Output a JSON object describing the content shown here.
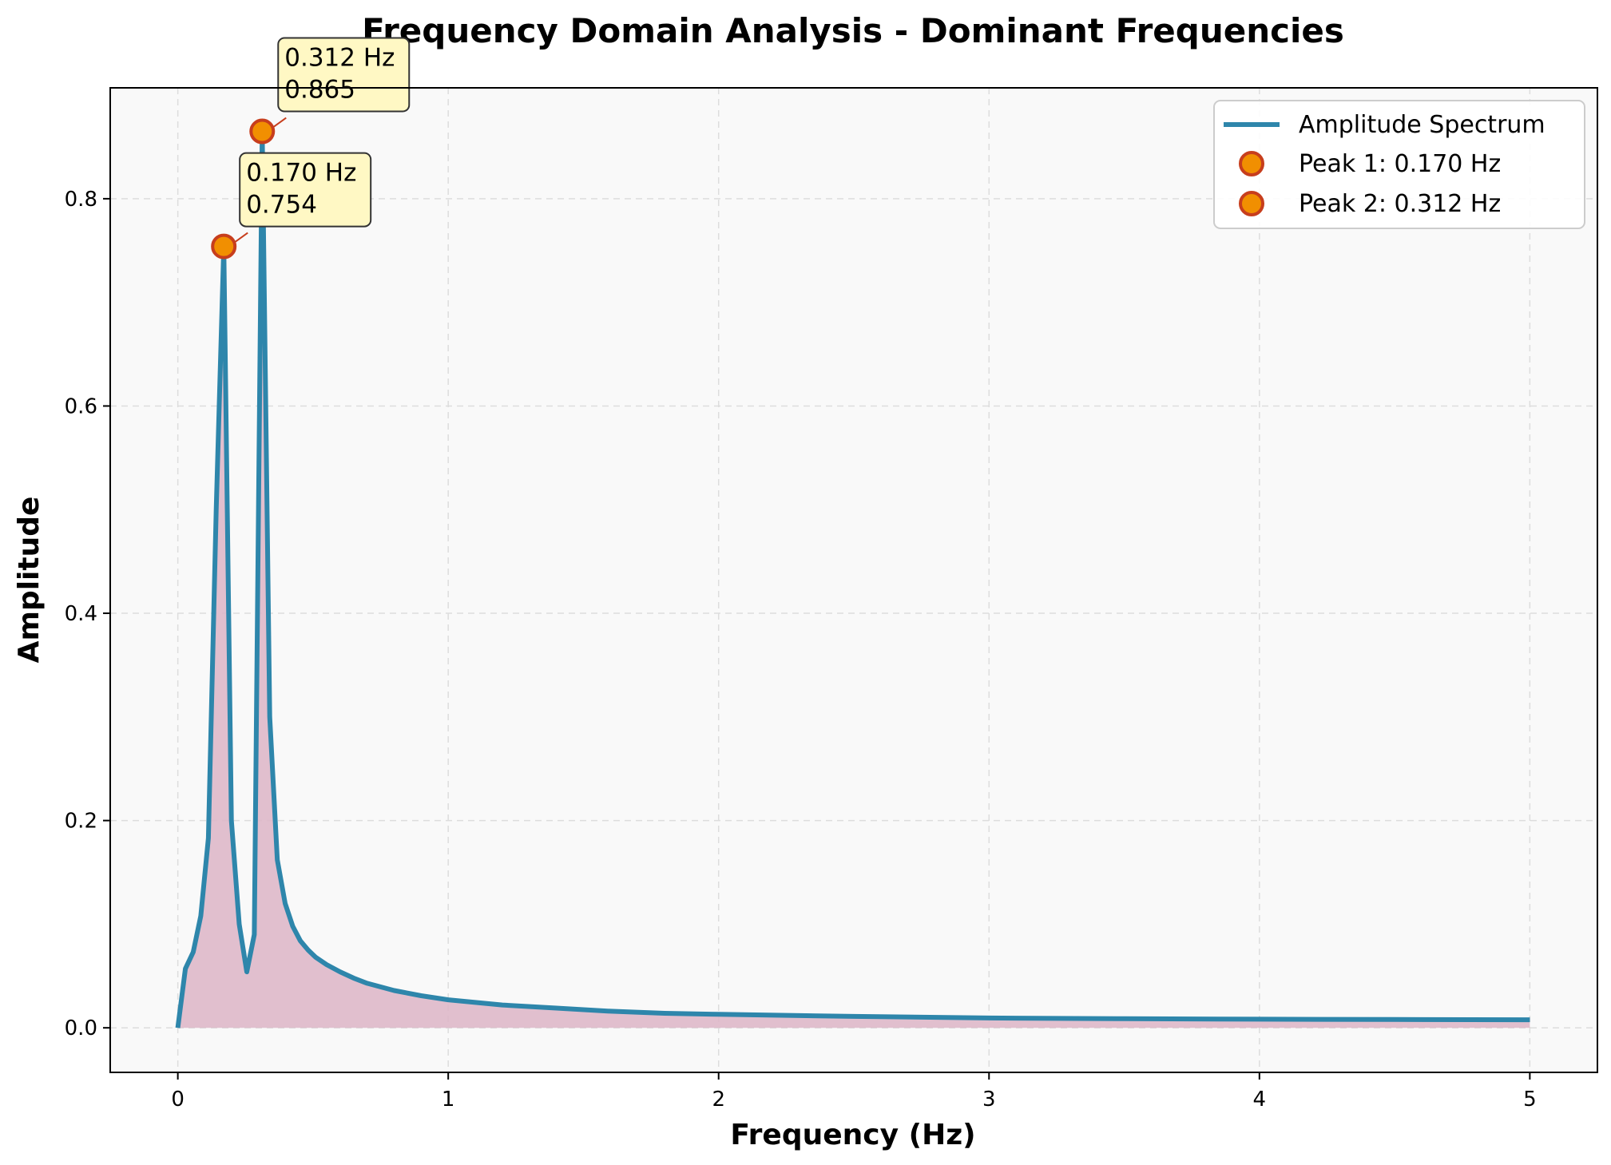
{
  "chart_data": {
    "type": "line",
    "title": "Frequency Domain Analysis - Dominant Frequencies",
    "xlabel": "Frequency (Hz)",
    "ylabel": "Amplitude",
    "xlim": [
      -0.25,
      5.25
    ],
    "ylim": [
      -0.043,
      0.907
    ],
    "xticks": [
      0,
      1,
      2,
      3,
      4,
      5
    ],
    "xtick_labels": [
      "0",
      "1",
      "2",
      "3",
      "4",
      "5"
    ],
    "yticks": [
      0.0,
      0.2,
      0.4,
      0.6,
      0.8
    ],
    "ytick_labels": [
      "0.0",
      "0.2",
      "0.4",
      "0.6",
      "0.8"
    ],
    "grid": true,
    "legend_position": "top-right",
    "series": [
      {
        "name": "Amplitude Spectrum",
        "color": "#2e86ab",
        "fill_color": "#deb8c9",
        "x": [
          0,
          0.028,
          0.057,
          0.085,
          0.113,
          0.142,
          0.17,
          0.198,
          0.227,
          0.255,
          0.283,
          0.312,
          0.34,
          0.368,
          0.397,
          0.425,
          0.453,
          0.482,
          0.51,
          0.55,
          0.6,
          0.65,
          0.7,
          0.8,
          0.9,
          1.0,
          1.2,
          1.4,
          1.6,
          1.8,
          2.0,
          2.5,
          3.0,
          3.5,
          4.0,
          4.5,
          5.0
        ],
        "y": [
          0.0,
          0.057,
          0.073,
          0.108,
          0.183,
          0.5,
          0.754,
          0.2,
          0.1,
          0.054,
          0.09,
          0.865,
          0.3,
          0.162,
          0.12,
          0.098,
          0.084,
          0.075,
          0.068,
          0.061,
          0.054,
          0.048,
          0.043,
          0.036,
          0.031,
          0.027,
          0.022,
          0.019,
          0.016,
          0.014,
          0.013,
          0.011,
          0.0095,
          0.0088,
          0.0083,
          0.008,
          0.0078
        ]
      }
    ],
    "peaks": [
      {
        "name": "Peak 1: 0.170 Hz",
        "x": 0.17,
        "y": 0.754,
        "label_freq": "0.170 Hz",
        "label_amp": "0.754"
      },
      {
        "name": "Peak 2: 0.312 Hz",
        "x": 0.312,
        "y": 0.865,
        "label_freq": "0.312 Hz",
        "label_amp": "0.865"
      }
    ],
    "peak_marker": {
      "fill": "#f18f01",
      "edge": "#c73e1d"
    },
    "annotation_box": {
      "fill": "#fff8c4",
      "edge": "#333333"
    }
  }
}
